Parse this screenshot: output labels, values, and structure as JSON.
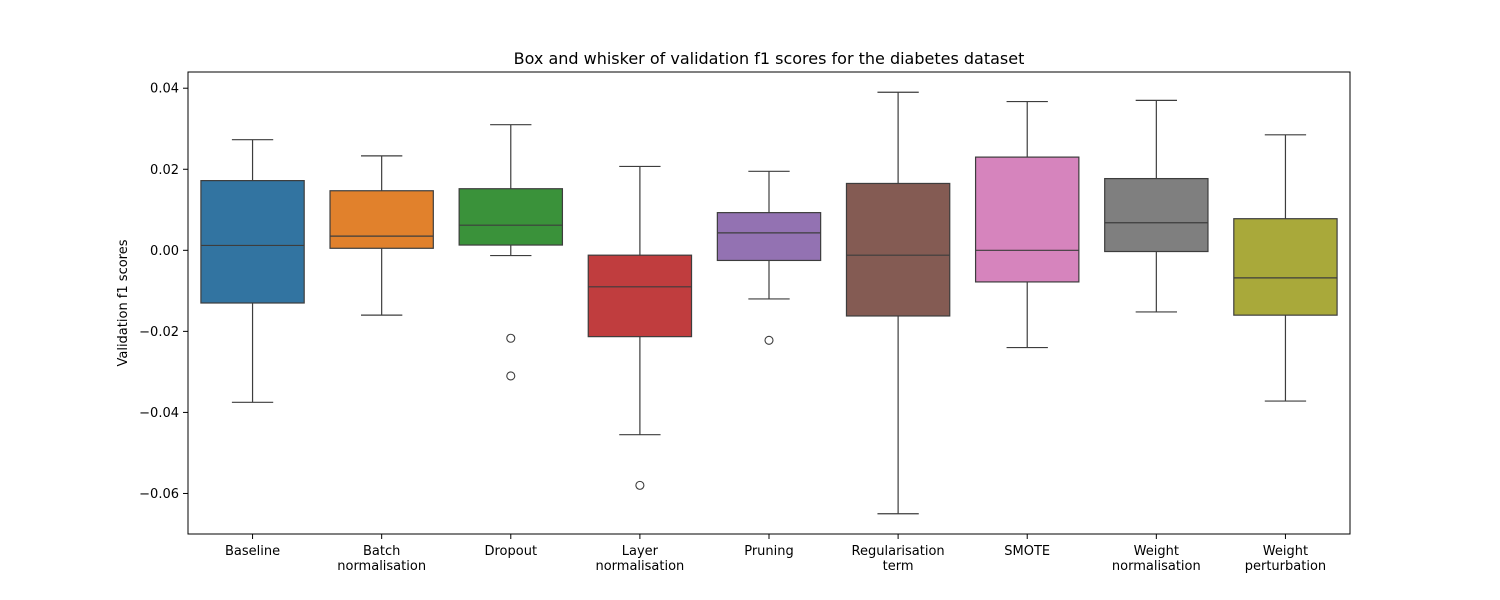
{
  "chart_data": {
    "type": "box",
    "title": "Box and whisker of validation f1 scores for the diabetes dataset",
    "xlabel": "",
    "ylabel": "Validation f1 scores",
    "ylim": [
      -0.07,
      0.044
    ],
    "yticks": [
      0.04,
      0.02,
      0.0,
      -0.02,
      -0.04,
      -0.06
    ],
    "ytick_labels": [
      "0.04",
      "0.02",
      "0.00",
      "−0.02",
      "−0.04",
      "−0.06"
    ],
    "grid": false,
    "categories": [
      {
        "label": [
          "Baseline"
        ],
        "color": "#3274a1",
        "whisker_low": -0.0375,
        "q1": -0.013,
        "median": 0.0012,
        "q3": 0.0172,
        "whisker_high": 0.0273,
        "outliers": []
      },
      {
        "label": [
          "Batch",
          "normalisation"
        ],
        "color": "#e1812c",
        "whisker_low": -0.016,
        "q1": 0.0005,
        "median": 0.0035,
        "q3": 0.0147,
        "whisker_high": 0.0233,
        "outliers": []
      },
      {
        "label": [
          "Dropout"
        ],
        "color": "#3a923a",
        "whisker_low": -0.0013,
        "q1": 0.0013,
        "median": 0.0062,
        "q3": 0.0152,
        "whisker_high": 0.031,
        "outliers": [
          -0.0217,
          -0.031
        ]
      },
      {
        "label": [
          "Layer",
          "normalisation"
        ],
        "color": "#c03d3e",
        "whisker_low": -0.0455,
        "q1": -0.0213,
        "median": -0.009,
        "q3": -0.0012,
        "whisker_high": 0.0207,
        "outliers": [
          -0.058
        ]
      },
      {
        "label": [
          "Pruning"
        ],
        "color": "#9372b2",
        "whisker_low": -0.012,
        "q1": -0.0025,
        "median": 0.0043,
        "q3": 0.0093,
        "whisker_high": 0.0195,
        "outliers": [
          -0.0222
        ]
      },
      {
        "label": [
          "Regularisation",
          "term"
        ],
        "color": "#845b53",
        "whisker_low": -0.065,
        "q1": -0.0162,
        "median": -0.0012,
        "q3": 0.0165,
        "whisker_high": 0.039,
        "outliers": []
      },
      {
        "label": [
          "SMOTE"
        ],
        "color": "#d684bd",
        "whisker_low": -0.024,
        "q1": -0.0078,
        "median": 0.0,
        "q3": 0.023,
        "whisker_high": 0.0367,
        "outliers": []
      },
      {
        "label": [
          "Weight",
          "normalisation"
        ],
        "color": "#7f7f7f",
        "whisker_low": -0.0152,
        "q1": -0.0003,
        "median": 0.0068,
        "q3": 0.0177,
        "whisker_high": 0.037,
        "outliers": []
      },
      {
        "label": [
          "Weight",
          "perturbation"
        ],
        "color": "#a9a93a",
        "whisker_low": -0.0372,
        "q1": -0.016,
        "median": -0.0068,
        "q3": 0.0078,
        "whisker_high": 0.0285,
        "outliers": []
      }
    ]
  }
}
